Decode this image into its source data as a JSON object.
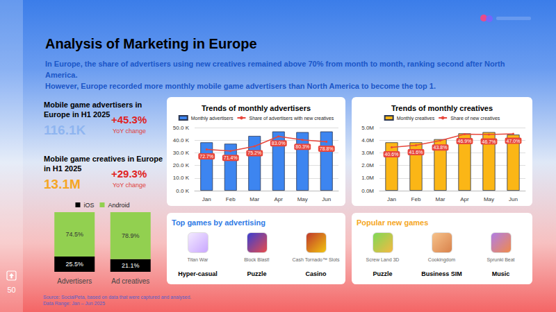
{
  "page": {
    "title": "Analysis of Marketing in Europe",
    "subtitle": [
      "In Europe, the share of advertisers using new creatives remained above 70% from month to month, ranking second after North America.",
      "However, Europe recorded more monthly mobile game advertisers than North America to become the top 1."
    ],
    "kpis": [
      {
        "label": "Mobile game advertisers in Europe in H1 2025",
        "value": "116.1K",
        "change": "+45.3%",
        "change_label": "YoY change",
        "color": "#8fb5f0"
      },
      {
        "label": "Mobile game creatives in Europe in H1 2025",
        "value": "13.1M",
        "change": "+29.3%",
        "change_label": "YoY change",
        "color": "#f5a623"
      }
    ],
    "game_panels": [
      {
        "title": "Top games by advertising",
        "color": "#2f7ae5",
        "games": [
          {
            "name": "Titan War",
            "genre": "Hyper-casual"
          },
          {
            "name": "Block Blast!",
            "genre": "Puzzle"
          },
          {
            "name": "Cash Tornado™ Slots",
            "genre": "Casino"
          }
        ]
      },
      {
        "title": "Popular new games",
        "color": "#f5a623",
        "games": [
          {
            "name": "Screw Land 3D",
            "genre": "Puzzle"
          },
          {
            "name": "Cookingdom",
            "genre": "Business SIM"
          },
          {
            "name": "Sprunki Beat",
            "genre": "Music"
          }
        ]
      }
    ],
    "page_number": "50",
    "source": [
      "Source: SocialPeta, based on data that were captured and analysed.",
      "Data Range: Jan – Jun 2025"
    ]
  },
  "chart_data": [
    {
      "type": "bar",
      "stacked": true,
      "categories": [
        "Advertisers",
        "Ad creatives"
      ],
      "series": [
        {
          "name": "iOS",
          "color": "#000000",
          "values": [
            25.5,
            21.1
          ],
          "value_labels": [
            "25.5%",
            "21.1%"
          ]
        },
        {
          "name": "Android",
          "color": "#92d050",
          "values": [
            74.5,
            78.9
          ],
          "value_labels": [
            "74.5%",
            "78.9%"
          ]
        }
      ],
      "ylim": [
        0,
        100
      ],
      "yticks": [],
      "tick_labels": "x",
      "data_labels": true,
      "legend": "top"
    },
    {
      "type": "bar",
      "title": "Trends of monthly advertisers",
      "categories": [
        "Jan",
        "Feb",
        "Mar",
        "Apr",
        "May",
        "Jun"
      ],
      "series": [
        {
          "name": "Monthly advertisers",
          "type": "bar",
          "color": "#3d85f0",
          "values": [
            38.3,
            37.2,
            43.4,
            46.9,
            46.4,
            46.9
          ]
        },
        {
          "name": "Share of advertisers with new creatives",
          "type": "line",
          "color": "#e8473c",
          "axis": "y2",
          "marker": "circle",
          "data_labels": true,
          "values": [
            72.7,
            71.4,
            75.2,
            83.0,
            80.3,
            78.8
          ],
          "value_labels": [
            "72.7%",
            "71.4%",
            "75.2%",
            "83.0%",
            "80.3%",
            "78.8%"
          ]
        }
      ],
      "ylim": [
        0,
        50
      ],
      "yticks": [
        {
          "value": 0,
          "label": "0.0 K"
        },
        {
          "value": 10,
          "label": "10.0 K"
        },
        {
          "value": 20,
          "label": "20.0 K"
        },
        {
          "value": 30,
          "label": "30.0 K"
        },
        {
          "value": 40,
          "label": "40.0 K"
        },
        {
          "value": 50,
          "label": "50.0 K"
        }
      ],
      "y2lim": [
        40,
        90
      ],
      "y2ticks": [],
      "grid": true,
      "legend": "top"
    },
    {
      "type": "bar",
      "title": "Trends of monthly creatives",
      "categories": [
        "Jan",
        "Feb",
        "Mar",
        "Apr",
        "May",
        "Jun"
      ],
      "series": [
        {
          "name": "Monthly creatives",
          "type": "bar",
          "color": "#fbb616",
          "values": [
            3.83,
            3.83,
            4.08,
            4.54,
            4.64,
            4.44
          ]
        },
        {
          "name": "Share of new creatives",
          "type": "line",
          "color": "#e8473c",
          "axis": "y2",
          "marker": "circle",
          "data_labels": true,
          "values": [
            40.6,
            41.6,
            43.8,
            46.9,
            46.7,
            47.0
          ],
          "value_labels": [
            "40.6%",
            "41.6%",
            "43.8%",
            "46.9%",
            "46.7%",
            "47.0%"
          ]
        }
      ],
      "ylim": [
        0,
        5
      ],
      "yticks": [
        {
          "value": 0,
          "label": "0.0M"
        },
        {
          "value": 1,
          "label": "1.0M"
        },
        {
          "value": 2,
          "label": "2.0M"
        },
        {
          "value": 3,
          "label": "3.0M"
        },
        {
          "value": 4,
          "label": "4.0M"
        },
        {
          "value": 5,
          "label": "5.0M"
        }
      ],
      "y2lim": [
        20,
        50
      ],
      "y2ticks": [],
      "grid": true,
      "legend": "top"
    }
  ]
}
